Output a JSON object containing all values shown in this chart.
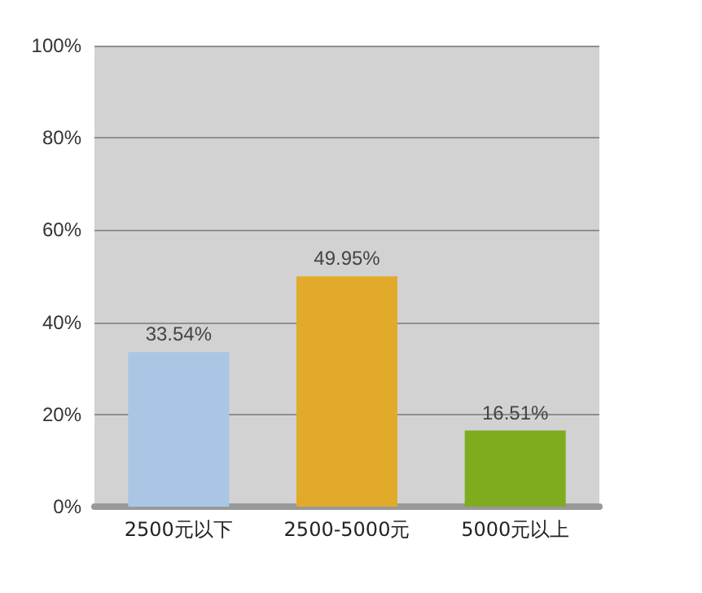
{
  "chart_data": {
    "type": "bar",
    "categories": [
      "2500元以下",
      "2500-5000元",
      "5000元以上"
    ],
    "values": [
      33.54,
      49.95,
      16.51
    ],
    "colors": [
      "#a9c7e4",
      "#e2aa2a",
      "#7fab1f"
    ],
    "value_labels": [
      "33.54%",
      "49.95%",
      "16.51%"
    ],
    "ylim": [
      0,
      100
    ],
    "yticks": [
      {
        "value": 0,
        "label": "0%"
      },
      {
        "value": 20,
        "label": "20%"
      },
      {
        "value": 40,
        "label": "40%"
      },
      {
        "value": 60,
        "label": "60%"
      },
      {
        "value": 80,
        "label": "80%"
      },
      {
        "value": 100,
        "label": "100%"
      }
    ],
    "grid": "y"
  }
}
